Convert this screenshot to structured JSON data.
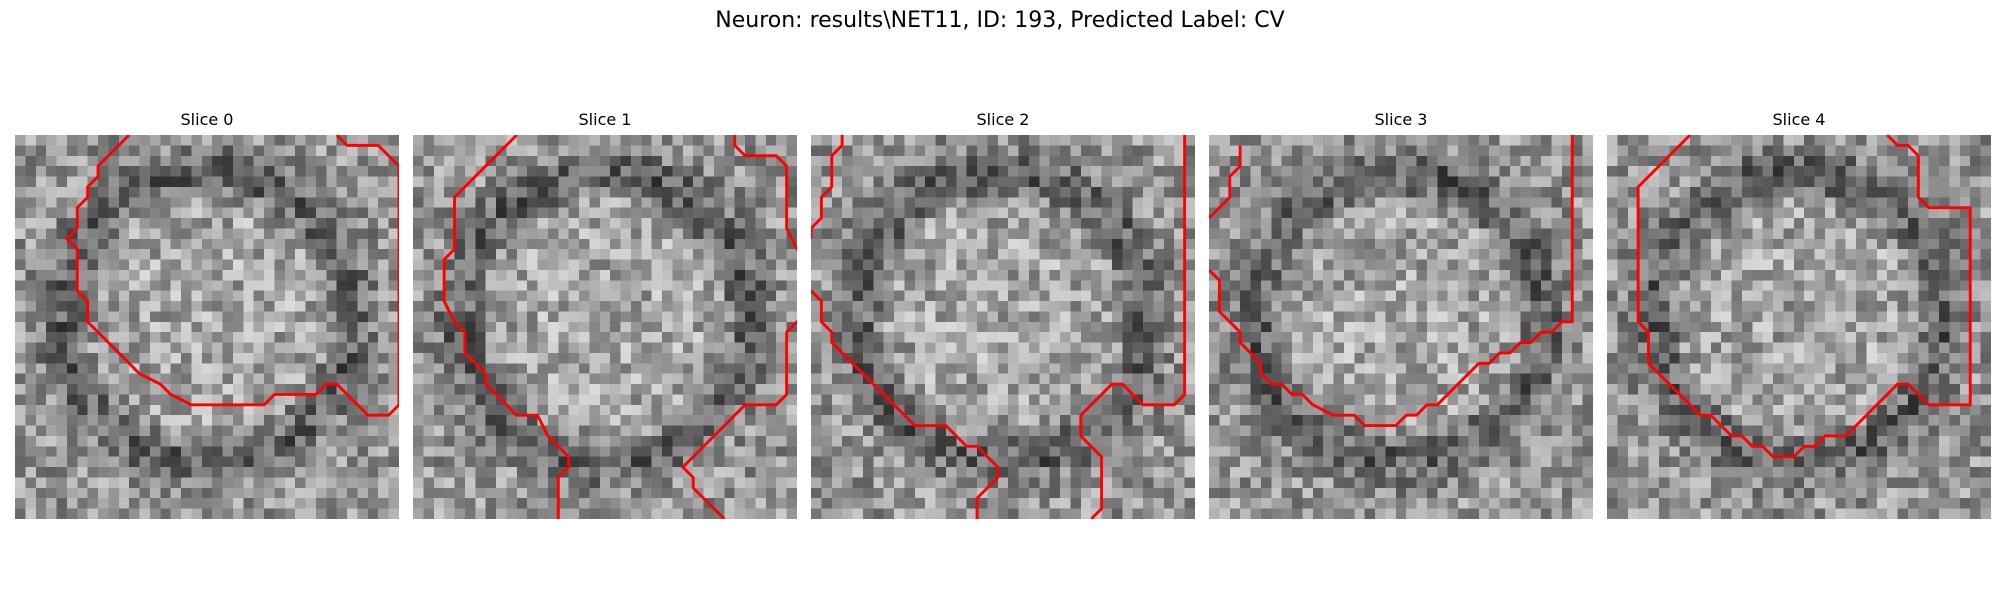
{
  "figure": {
    "title": "Neuron: results\\NET11, ID: 193, Predicted Label: CV"
  },
  "colors": {
    "contour": "#ff0000",
    "background": "#ffffff"
  },
  "panels": [
    {
      "title": "Slice 0",
      "contours": [
        [
          [
            11,
            0
          ],
          [
            9,
            2
          ],
          [
            8,
            3
          ],
          [
            8,
            4
          ],
          [
            7,
            5
          ],
          [
            7,
            6
          ],
          [
            6,
            7
          ],
          [
            6,
            9
          ],
          [
            5,
            10
          ],
          [
            6,
            11
          ],
          [
            6,
            15
          ],
          [
            7,
            16
          ],
          [
            7,
            18
          ],
          [
            8,
            19
          ],
          [
            9,
            20
          ],
          [
            10,
            21
          ],
          [
            11,
            22
          ],
          [
            12,
            23
          ],
          [
            14,
            24
          ],
          [
            15,
            25
          ],
          [
            17,
            26
          ],
          [
            19,
            26
          ],
          [
            21,
            26
          ],
          [
            24,
            26
          ],
          [
            25,
            25
          ],
          [
            27,
            25
          ],
          [
            29,
            25
          ],
          [
            30,
            24
          ],
          [
            31,
            24
          ],
          [
            32,
            25
          ],
          [
            33,
            26
          ],
          [
            34,
            27
          ],
          [
            36,
            27
          ],
          [
            37,
            26
          ],
          [
            37,
            21
          ],
          [
            37,
            18
          ],
          [
            37,
            10
          ],
          [
            37,
            5
          ],
          [
            37,
            3
          ],
          [
            36,
            2
          ],
          [
            35,
            1
          ],
          [
            33,
            1
          ],
          [
            32,
            1
          ],
          [
            31,
            0
          ]
        ]
      ]
    },
    {
      "title": "Slice 1",
      "contours": [
        [
          [
            10,
            0
          ],
          [
            8,
            2
          ],
          [
            7,
            3
          ],
          [
            6,
            4
          ],
          [
            5,
            5
          ],
          [
            4,
            6
          ],
          [
            4,
            9
          ],
          [
            4,
            11
          ],
          [
            3,
            12
          ],
          [
            3,
            15
          ],
          [
            3,
            16
          ],
          [
            4,
            18
          ],
          [
            5,
            19
          ],
          [
            5,
            21
          ],
          [
            6,
            22
          ],
          [
            7,
            23
          ],
          [
            7,
            24
          ],
          [
            8,
            25
          ],
          [
            9,
            26
          ],
          [
            10,
            27
          ],
          [
            12,
            27
          ],
          [
            13,
            29
          ],
          [
            14,
            30
          ],
          [
            15,
            31
          ],
          [
            15,
            32
          ],
          [
            14,
            33
          ],
          [
            14,
            34
          ],
          [
            14,
            37
          ]
        ],
        [
          [
            31,
            0
          ],
          [
            31,
            1
          ],
          [
            32,
            2
          ],
          [
            35,
            2
          ],
          [
            36,
            3
          ],
          [
            36,
            7
          ],
          [
            36,
            9
          ],
          [
            37,
            11
          ],
          [
            38,
            12
          ],
          [
            39,
            12
          ]
        ],
        [
          [
            38,
            17
          ],
          [
            37,
            18
          ],
          [
            36,
            19
          ],
          [
            36,
            22
          ],
          [
            36,
            24
          ],
          [
            36,
            25
          ],
          [
            35,
            26
          ],
          [
            32,
            26
          ],
          [
            31,
            27
          ],
          [
            30,
            28
          ],
          [
            29,
            29
          ],
          [
            28,
            30
          ],
          [
            27,
            31
          ],
          [
            26,
            32
          ],
          [
            27,
            33
          ],
          [
            27,
            34
          ],
          [
            28,
            35
          ],
          [
            29,
            36
          ],
          [
            30,
            37
          ]
        ]
      ]
    },
    {
      "title": "Slice 2",
      "contours": [
        [
          [
            3,
            0
          ],
          [
            3,
            1
          ],
          [
            2,
            2
          ],
          [
            2,
            3
          ],
          [
            2,
            5
          ],
          [
            1,
            6
          ],
          [
            1,
            8
          ],
          [
            0,
            9
          ],
          [
            0,
            10
          ]
        ],
        [
          [
            0,
            15
          ],
          [
            1,
            16
          ],
          [
            1,
            18
          ],
          [
            2,
            19
          ],
          [
            2,
            20
          ],
          [
            3,
            21
          ],
          [
            4,
            22
          ],
          [
            5,
            23
          ],
          [
            6,
            24
          ],
          [
            7,
            25
          ],
          [
            8,
            26
          ],
          [
            9,
            27
          ],
          [
            10,
            28
          ],
          [
            13,
            28
          ],
          [
            14,
            29
          ],
          [
            15,
            30
          ],
          [
            16,
            30
          ],
          [
            17,
            31
          ],
          [
            18,
            32
          ],
          [
            18,
            33
          ],
          [
            17,
            34
          ],
          [
            16,
            35
          ],
          [
            16,
            37
          ]
        ],
        [
          [
            36,
            0
          ],
          [
            36,
            3
          ],
          [
            36,
            5
          ],
          [
            36,
            10
          ],
          [
            36,
            16
          ],
          [
            36,
            19
          ],
          [
            36,
            25
          ],
          [
            35,
            26
          ],
          [
            32,
            26
          ],
          [
            31,
            25
          ],
          [
            30,
            24
          ],
          [
            29,
            24
          ],
          [
            28,
            25
          ],
          [
            27,
            26
          ],
          [
            26,
            27
          ],
          [
            26,
            29
          ],
          [
            27,
            30
          ],
          [
            28,
            31
          ],
          [
            28,
            35
          ],
          [
            28,
            36
          ],
          [
            27,
            37
          ]
        ]
      ]
    },
    {
      "title": "Slice 3",
      "contours": [
        [
          [
            3,
            1
          ],
          [
            3,
            3
          ],
          [
            2,
            4
          ],
          [
            2,
            6
          ],
          [
            1,
            7
          ],
          [
            0,
            8
          ]
        ],
        [
          [
            0,
            13
          ],
          [
            1,
            14
          ],
          [
            1,
            17
          ],
          [
            2,
            18
          ],
          [
            3,
            19
          ],
          [
            3,
            20
          ],
          [
            4,
            21
          ],
          [
            5,
            22
          ],
          [
            5,
            23
          ],
          [
            6,
            24
          ],
          [
            7,
            24
          ],
          [
            8,
            25
          ],
          [
            9,
            25
          ],
          [
            10,
            26
          ],
          [
            12,
            27
          ],
          [
            14,
            27
          ],
          [
            15,
            28
          ],
          [
            18,
            28
          ],
          [
            19,
            27
          ],
          [
            20,
            27
          ],
          [
            21,
            26
          ],
          [
            22,
            26
          ],
          [
            23,
            25
          ],
          [
            24,
            24
          ],
          [
            25,
            23
          ],
          [
            26,
            22
          ],
          [
            27,
            22
          ],
          [
            28,
            21
          ],
          [
            29,
            21
          ],
          [
            30,
            20
          ],
          [
            31,
            20
          ],
          [
            32,
            19
          ],
          [
            33,
            19
          ],
          [
            34,
            18
          ],
          [
            35,
            18
          ],
          [
            35,
            14
          ],
          [
            35,
            10
          ],
          [
            35,
            5
          ],
          [
            35,
            0
          ]
        ]
      ]
    },
    {
      "title": "Slice 4",
      "contours": [
        [
          [
            8,
            0
          ],
          [
            6,
            2
          ],
          [
            5,
            3
          ],
          [
            4,
            4
          ],
          [
            3,
            5
          ],
          [
            3,
            10
          ],
          [
            3,
            15
          ],
          [
            3,
            18
          ],
          [
            4,
            19
          ],
          [
            4,
            22
          ],
          [
            5,
            23
          ],
          [
            6,
            24
          ],
          [
            7,
            25
          ],
          [
            8,
            26
          ],
          [
            9,
            27
          ],
          [
            10,
            27
          ],
          [
            11,
            28
          ],
          [
            12,
            29
          ],
          [
            13,
            29
          ],
          [
            14,
            30
          ],
          [
            15,
            30
          ],
          [
            16,
            31
          ],
          [
            18,
            31
          ],
          [
            19,
            30
          ],
          [
            20,
            30
          ],
          [
            21,
            29
          ],
          [
            23,
            29
          ],
          [
            24,
            28
          ],
          [
            25,
            27
          ],
          [
            26,
            26
          ],
          [
            27,
            25
          ],
          [
            28,
            24
          ],
          [
            29,
            24
          ],
          [
            30,
            25
          ],
          [
            31,
            26
          ],
          [
            35,
            26
          ],
          [
            35,
            15
          ],
          [
            35,
            10
          ],
          [
            35,
            7
          ],
          [
            34,
            7
          ],
          [
            31,
            7
          ],
          [
            30,
            6
          ],
          [
            30,
            2
          ],
          [
            29,
            1
          ],
          [
            28,
            1
          ],
          [
            27,
            0
          ]
        ]
      ]
    }
  ]
}
